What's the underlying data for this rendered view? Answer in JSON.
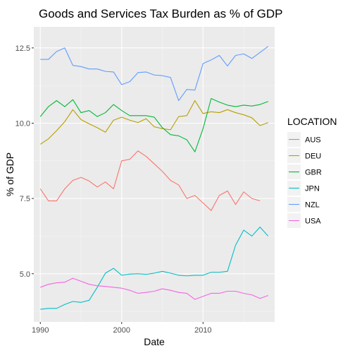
{
  "chart_data": {
    "type": "line",
    "title": "Goods and Services Tax Burden as % of GDP",
    "xlabel": "Date",
    "ylabel": "% of GDP",
    "x": [
      1990,
      1991,
      1992,
      1993,
      1994,
      1995,
      1996,
      1997,
      1998,
      1999,
      2000,
      2001,
      2002,
      2003,
      2004,
      2005,
      2006,
      2007,
      2008,
      2009,
      2010,
      2011,
      2012,
      2013,
      2014,
      2015,
      2016,
      2017,
      2018
    ],
    "xlim": [
      1989.2,
      2018.8
    ],
    "ylim": [
      3.4,
      13.2
    ],
    "x_ticks": [
      1990,
      2000,
      2010
    ],
    "x_tick_labels": [
      "1990",
      "2000",
      "2010"
    ],
    "y_ticks": [
      5.0,
      7.5,
      10.0,
      12.5
    ],
    "y_tick_labels": [
      "5.0",
      "7.5",
      "10.0",
      "12.5"
    ],
    "grid": true,
    "legend": {
      "title": "LOCATION",
      "placement": "right"
    },
    "series": [
      {
        "name": "AUS",
        "color": "#F8766D",
        "values": [
          7.82,
          7.42,
          7.42,
          7.82,
          8.1,
          8.2,
          8.08,
          7.88,
          8.05,
          7.82,
          8.75,
          8.8,
          9.08,
          8.9,
          8.65,
          8.4,
          8.1,
          7.95,
          7.5,
          7.6,
          7.35,
          7.1,
          7.6,
          7.75,
          7.3,
          7.72,
          7.5,
          7.42,
          null
        ]
      },
      {
        "name": "DEU",
        "color": "#B79F00",
        "values": [
          9.3,
          9.48,
          9.75,
          10.05,
          10.45,
          10.12,
          9.98,
          9.85,
          9.7,
          10.1,
          10.2,
          10.1,
          10.02,
          10.15,
          9.88,
          9.82,
          9.78,
          10.22,
          10.25,
          10.75,
          10.32,
          10.38,
          10.35,
          10.45,
          10.35,
          10.28,
          10.18,
          9.92,
          10.02
        ]
      },
      {
        "name": "GBR",
        "color": "#00BA38",
        "values": [
          10.22,
          10.55,
          10.75,
          10.55,
          10.78,
          10.35,
          10.42,
          10.22,
          10.35,
          10.62,
          10.42,
          10.25,
          10.25,
          10.25,
          10.2,
          9.85,
          9.62,
          9.58,
          9.45,
          9.05,
          9.82,
          10.82,
          10.7,
          10.6,
          10.55,
          10.6,
          10.57,
          10.62,
          10.72
        ]
      },
      {
        "name": "JPN",
        "color": "#00BFC4",
        "values": [
          3.82,
          3.85,
          3.85,
          3.98,
          4.08,
          4.05,
          4.12,
          4.55,
          5.02,
          5.18,
          4.95,
          4.99,
          5.0,
          4.98,
          5.02,
          5.08,
          5.02,
          4.95,
          4.93,
          4.95,
          4.95,
          5.05,
          5.05,
          5.08,
          5.95,
          6.45,
          6.25,
          6.55,
          6.25
        ]
      },
      {
        "name": "NZL",
        "color": "#619CFF",
        "values": [
          12.12,
          12.12,
          12.38,
          12.5,
          11.92,
          11.88,
          11.8,
          11.8,
          11.72,
          11.7,
          11.28,
          11.38,
          11.68,
          11.7,
          11.6,
          11.58,
          11.52,
          10.75,
          11.12,
          11.1,
          11.98,
          12.1,
          12.25,
          11.9,
          12.25,
          12.3,
          12.15,
          12.35,
          12.55
        ]
      },
      {
        "name": "USA",
        "color": "#F564E3",
        "values": [
          4.55,
          4.65,
          4.7,
          4.72,
          4.85,
          4.75,
          4.65,
          4.6,
          4.58,
          4.55,
          4.52,
          4.45,
          4.35,
          4.38,
          4.42,
          4.5,
          4.45,
          4.38,
          4.35,
          4.15,
          4.25,
          4.35,
          4.35,
          4.42,
          4.42,
          4.35,
          4.3,
          4.18,
          4.28
        ]
      }
    ]
  }
}
